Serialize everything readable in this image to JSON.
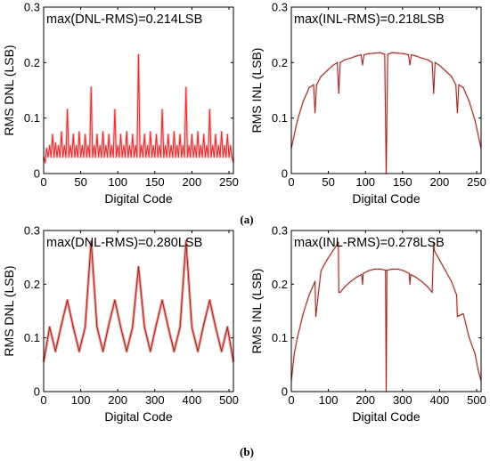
{
  "panel_labels": [
    "(a)",
    "(b)"
  ],
  "chart_data": [
    {
      "type": "line",
      "id": "a-dnl",
      "annotation": "max(DNL-RMS)=0.214LSB",
      "xlabel": "Digital Code",
      "ylabel": "RMS DNL  (LSB)",
      "xlim": [
        0,
        256
      ],
      "ylim": [
        0,
        0.3
      ],
      "xticks": [
        0,
        50,
        100,
        150,
        200,
        250
      ],
      "yticks": [
        0,
        0.1,
        0.2,
        0.3
      ],
      "ytick_labels": [
        "0",
        "0.1",
        "0.2",
        "0.3"
      ],
      "grid": false,
      "line_color": "#e8282b",
      "shade_color": "#d48a8a",
      "series": [
        {
          "x": [
            0,
            2,
            4,
            6,
            8,
            10,
            12,
            14,
            16,
            18,
            20,
            22,
            24,
            26,
            28,
            30,
            32,
            34,
            36,
            38,
            40,
            42,
            44,
            46,
            48,
            50,
            52,
            54,
            56,
            58,
            60,
            62,
            64,
            66,
            68,
            70,
            72,
            74,
            76,
            78,
            80,
            82,
            84,
            86,
            88,
            90,
            92,
            94,
            96,
            98,
            100,
            102,
            104,
            106,
            108,
            110,
            112,
            114,
            116,
            118,
            120,
            122,
            124,
            126,
            128,
            130,
            132,
            134,
            136,
            138,
            140,
            142,
            144,
            146,
            148,
            150,
            152,
            154,
            156,
            158,
            160,
            162,
            164,
            166,
            168,
            170,
            172,
            174,
            176,
            178,
            180,
            182,
            184,
            186,
            188,
            190,
            192,
            194,
            196,
            198,
            200,
            202,
            204,
            206,
            208,
            210,
            212,
            214,
            216,
            218,
            220,
            222,
            224,
            226,
            228,
            230,
            232,
            234,
            236,
            238,
            240,
            242,
            244,
            246,
            248,
            250,
            252,
            254,
            256
          ],
          "y": [
            0.03,
            0.02,
            0.045,
            0.03,
            0.05,
            0.03,
            0.07,
            0.03,
            0.055,
            0.03,
            0.05,
            0.03,
            0.075,
            0.03,
            0.05,
            0.03,
            0.115,
            0.03,
            0.05,
            0.03,
            0.07,
            0.03,
            0.05,
            0.03,
            0.075,
            0.03,
            0.05,
            0.03,
            0.07,
            0.03,
            0.05,
            0.03,
            0.155,
            0.03,
            0.05,
            0.03,
            0.07,
            0.03,
            0.05,
            0.03,
            0.075,
            0.03,
            0.05,
            0.03,
            0.07,
            0.03,
            0.05,
            0.03,
            0.115,
            0.03,
            0.05,
            0.03,
            0.07,
            0.03,
            0.05,
            0.03,
            0.075,
            0.03,
            0.05,
            0.03,
            0.07,
            0.03,
            0.05,
            0.03,
            0.214,
            0.03,
            0.05,
            0.03,
            0.07,
            0.03,
            0.05,
            0.03,
            0.075,
            0.03,
            0.05,
            0.03,
            0.07,
            0.03,
            0.05,
            0.03,
            0.115,
            0.03,
            0.05,
            0.03,
            0.07,
            0.03,
            0.05,
            0.03,
            0.075,
            0.03,
            0.05,
            0.03,
            0.07,
            0.03,
            0.05,
            0.03,
            0.155,
            0.03,
            0.05,
            0.03,
            0.07,
            0.03,
            0.05,
            0.03,
            0.075,
            0.03,
            0.05,
            0.03,
            0.07,
            0.03,
            0.05,
            0.03,
            0.115,
            0.03,
            0.05,
            0.03,
            0.07,
            0.03,
            0.05,
            0.03,
            0.075,
            0.03,
            0.05,
            0.03,
            0.07,
            0.03,
            0.05,
            0.03,
            0.02
          ]
        }
      ]
    },
    {
      "type": "line",
      "id": "a-inl",
      "annotation": "max(INL-RMS)=0.218LSB",
      "xlabel": "Digital Code",
      "ylabel": "RMS INL  (LSB)",
      "xlim": [
        0,
        256
      ],
      "ylim": [
        0,
        0.3
      ],
      "xticks": [
        0,
        50,
        100,
        150,
        200,
        250
      ],
      "yticks": [
        0,
        0.1,
        0.2,
        0.3
      ],
      "ytick_labels": [
        "0",
        "0.1",
        "0.2",
        "0.3"
      ],
      "grid": false,
      "line_color": "#8a2a1a",
      "shade_color": "#f2c4cf",
      "series": [
        {
          "x": [
            0,
            8,
            16,
            24,
            30,
            32,
            34,
            40,
            48,
            56,
            62,
            64,
            66,
            72,
            80,
            88,
            94,
            96,
            98,
            104,
            112,
            120,
            126,
            128,
            130,
            136,
            144,
            152,
            158,
            160,
            162,
            168,
            176,
            184,
            190,
            192,
            194,
            200,
            208,
            216,
            222,
            224,
            226,
            232,
            240,
            248,
            256
          ],
          "y": [
            0.045,
            0.095,
            0.13,
            0.155,
            0.16,
            0.11,
            0.16,
            0.175,
            0.185,
            0.195,
            0.2,
            0.145,
            0.2,
            0.205,
            0.208,
            0.212,
            0.214,
            0.196,
            0.214,
            0.216,
            0.217,
            0.218,
            0.215,
            0.0,
            0.215,
            0.218,
            0.217,
            0.216,
            0.214,
            0.196,
            0.214,
            0.212,
            0.208,
            0.205,
            0.2,
            0.145,
            0.2,
            0.195,
            0.185,
            0.175,
            0.16,
            0.11,
            0.16,
            0.155,
            0.13,
            0.095,
            0.045
          ]
        }
      ]
    },
    {
      "type": "line",
      "id": "b-dnl",
      "annotation": "max(DNL-RMS)=0.280LSB",
      "xlabel": "Digital Code",
      "ylabel": "RMS DNL  (LSB)",
      "xlim": [
        0,
        512
      ],
      "ylim": [
        0,
        0.3
      ],
      "xticks": [
        0,
        100,
        200,
        300,
        400,
        500
      ],
      "yticks": [
        0,
        0.1,
        0.2,
        0.3
      ],
      "ytick_labels": [
        "0",
        "0.1",
        "0.2",
        "0.3"
      ],
      "grid": false,
      "line_color": "#8a2a1a",
      "shade_color": "#e8282b",
      "series": [
        {
          "x": [
            0,
            16,
            32,
            48,
            64,
            80,
            96,
            112,
            128,
            144,
            160,
            176,
            192,
            208,
            224,
            240,
            256,
            272,
            288,
            304,
            320,
            336,
            352,
            368,
            384,
            400,
            416,
            432,
            448,
            464,
            480,
            496,
            512
          ],
          "y": [
            0.055,
            0.12,
            0.075,
            0.125,
            0.17,
            0.12,
            0.075,
            0.12,
            0.28,
            0.12,
            0.075,
            0.125,
            0.17,
            0.12,
            0.075,
            0.12,
            0.232,
            0.12,
            0.075,
            0.125,
            0.17,
            0.12,
            0.075,
            0.12,
            0.28,
            0.12,
            0.075,
            0.125,
            0.17,
            0.12,
            0.075,
            0.12,
            0.055
          ]
        }
      ]
    },
    {
      "type": "line",
      "id": "b-inl",
      "annotation": "max(INL-RMS)=0.278LSB",
      "xlabel": "Digital Code",
      "ylabel": "RMS INL  (LSB)",
      "xlim": [
        0,
        512
      ],
      "ylim": [
        0,
        0.3
      ],
      "xticks": [
        0,
        100,
        200,
        300,
        400,
        500
      ],
      "yticks": [
        0,
        0.1,
        0.2,
        0.3
      ],
      "ytick_labels": [
        "0",
        "0.1",
        "0.2",
        "0.3"
      ],
      "grid": false,
      "line_color": "#8a2a1a",
      "shade_color": "#f2c4cf",
      "series": [
        {
          "x": [
            0,
            8,
            16,
            32,
            48,
            64,
            66,
            80,
            96,
            112,
            127,
            128,
            132,
            144,
            160,
            176,
            190,
            192,
            194,
            208,
            224,
            240,
            254,
            256,
            258,
            272,
            288,
            304,
            318,
            320,
            322,
            336,
            352,
            368,
            380,
            384,
            386,
            400,
            416,
            432,
            446,
            448,
            464,
            480,
            496,
            504,
            512
          ],
          "y": [
            0.02,
            0.07,
            0.1,
            0.145,
            0.18,
            0.205,
            0.14,
            0.225,
            0.245,
            0.262,
            0.278,
            0.185,
            0.185,
            0.195,
            0.205,
            0.213,
            0.218,
            0.2,
            0.22,
            0.225,
            0.228,
            0.228,
            0.226,
            0.0,
            0.226,
            0.228,
            0.228,
            0.225,
            0.22,
            0.2,
            0.218,
            0.213,
            0.205,
            0.195,
            0.185,
            0.278,
            0.262,
            0.245,
            0.225,
            0.205,
            0.18,
            0.14,
            0.145,
            0.1,
            0.07,
            0.04,
            0.02
          ]
        }
      ]
    }
  ]
}
